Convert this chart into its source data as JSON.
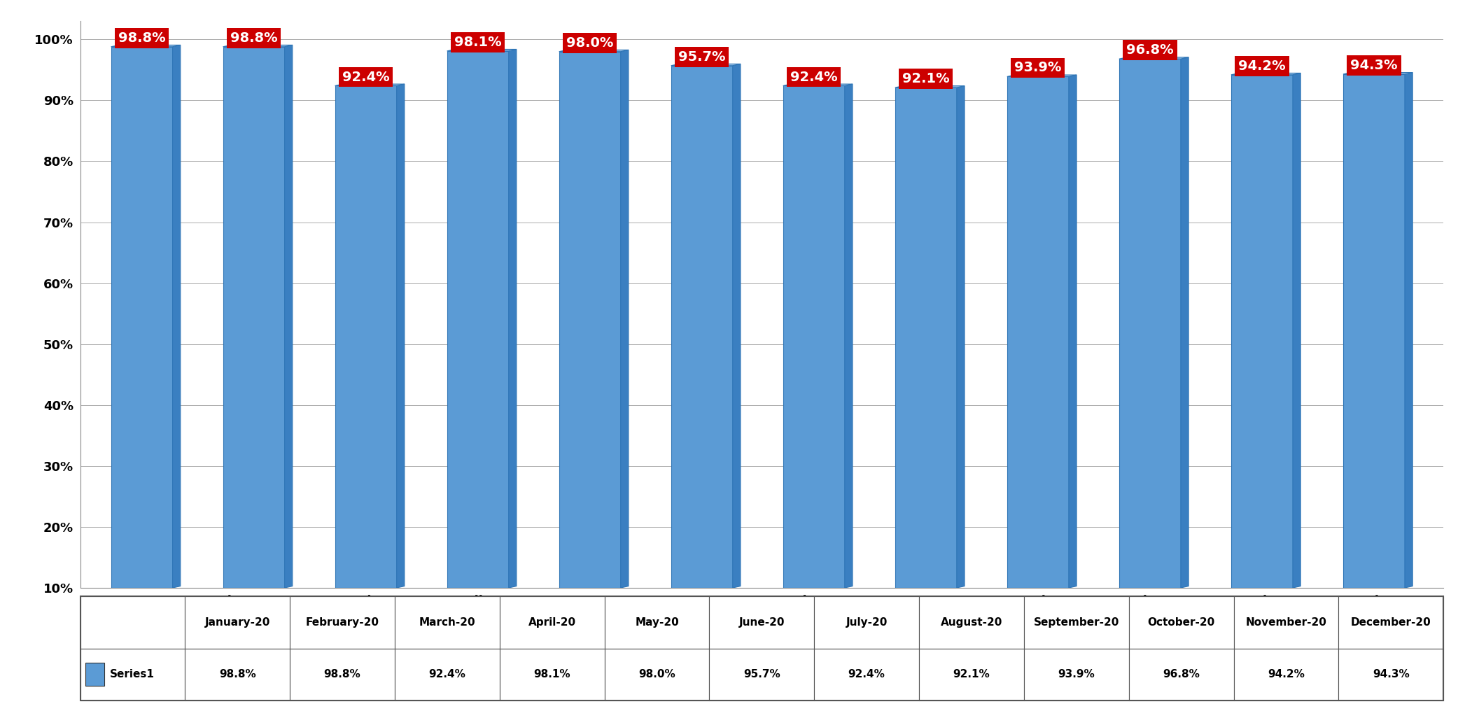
{
  "months": [
    "January-20",
    "February-20",
    "March-20",
    "April-20",
    "May-20",
    "June-20",
    "July-20",
    "August-20",
    "September-20",
    "October-20",
    "November-20",
    "December-20"
  ],
  "values": [
    98.8,
    98.8,
    92.4,
    98.1,
    98.0,
    95.7,
    92.4,
    92.1,
    93.9,
    96.8,
    94.2,
    94.3
  ],
  "bar_color": "#5B9BD5",
  "bar_color_dark": "#2E75B6",
  "bar_right_face": "#3A7FC1",
  "bar_top_face": "#9DC3E6",
  "label_bg_color": "#CC0000",
  "label_text_color": "#FFFFFF",
  "ylabel_ticks": [
    "10%",
    "20%",
    "30%",
    "40%",
    "50%",
    "60%",
    "70%",
    "80%",
    "90%",
    "100%"
  ],
  "ylabel_values": [
    10,
    20,
    30,
    40,
    50,
    60,
    70,
    80,
    90,
    100
  ],
  "ymin": 10,
  "ymax": 103,
  "background_color": "#FFFFFF",
  "plot_bg_color": "#FFFFFF",
  "grid_color": "#AAAAAA",
  "floor_color": "#D0D0D0",
  "legend_label": "Series1",
  "legend_color": "#5B9BD5",
  "tick_fontsize": 13,
  "label_fontsize": 14,
  "table_fontsize": 11
}
